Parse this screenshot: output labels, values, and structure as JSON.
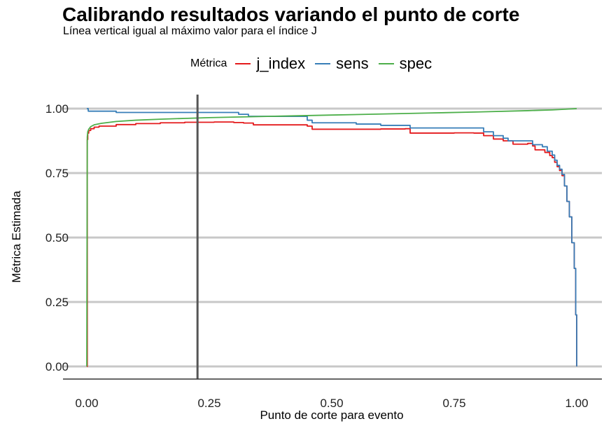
{
  "chart_data": {
    "type": "line",
    "title": "Calibrando resultados variando el punto de corte",
    "subtitle": "Línea vertical igual al máximo valor para el índice J",
    "xlabel": "Punto de corte para evento",
    "ylabel": "Métrica Estimada",
    "xlim": [
      0,
      1
    ],
    "ylim": [
      0,
      1
    ],
    "x_ticks": [
      "0.00",
      "0.25",
      "0.50",
      "0.75",
      "1.00"
    ],
    "y_ticks": [
      "0.00",
      "0.25",
      "0.50",
      "0.75",
      "1.00"
    ],
    "grid": "horizontal major lines",
    "legend_placement": "top",
    "legend_title": "Métrica",
    "vline_x": 0.226,
    "vline_color": "#555555",
    "series": [
      {
        "name": "j_index",
        "color": "#E41A1C",
        "step": true,
        "points": [
          [
            0.0,
            0.0
          ],
          [
            0.001,
            0.88
          ],
          [
            0.002,
            0.905
          ],
          [
            0.004,
            0.915
          ],
          [
            0.008,
            0.922
          ],
          [
            0.015,
            0.928
          ],
          [
            0.025,
            0.932
          ],
          [
            0.06,
            0.938
          ],
          [
            0.1,
            0.942
          ],
          [
            0.15,
            0.945
          ],
          [
            0.2,
            0.947
          ],
          [
            0.26,
            0.948
          ],
          [
            0.3,
            0.946
          ],
          [
            0.32,
            0.944
          ],
          [
            0.34,
            0.937
          ],
          [
            0.45,
            0.932
          ],
          [
            0.46,
            0.92
          ],
          [
            0.6,
            0.921
          ],
          [
            0.65,
            0.922
          ],
          [
            0.66,
            0.905
          ],
          [
            0.75,
            0.906
          ],
          [
            0.79,
            0.905
          ],
          [
            0.81,
            0.895
          ],
          [
            0.83,
            0.882
          ],
          [
            0.85,
            0.875
          ],
          [
            0.87,
            0.862
          ],
          [
            0.9,
            0.865
          ],
          [
            0.91,
            0.855
          ],
          [
            0.915,
            0.84
          ],
          [
            0.93,
            0.84
          ],
          [
            0.935,
            0.83
          ],
          [
            0.945,
            0.818
          ],
          [
            0.95,
            0.81
          ],
          [
            0.955,
            0.792
          ],
          [
            0.96,
            0.775
          ],
          [
            0.965,
            0.76
          ],
          [
            0.97,
            0.74
          ],
          [
            0.975,
            0.7
          ],
          [
            0.98,
            0.64
          ],
          [
            0.985,
            0.58
          ],
          [
            0.99,
            0.48
          ],
          [
            0.995,
            0.38
          ],
          [
            0.998,
            0.2
          ],
          [
            1.0,
            0.0
          ]
        ]
      },
      {
        "name": "sens",
        "color": "#377EB8",
        "step": true,
        "points": [
          [
            0.0,
            1.0
          ],
          [
            0.003,
            0.99
          ],
          [
            0.06,
            0.985
          ],
          [
            0.31,
            0.978
          ],
          [
            0.33,
            0.97
          ],
          [
            0.45,
            0.955
          ],
          [
            0.46,
            0.945
          ],
          [
            0.55,
            0.94
          ],
          [
            0.6,
            0.935
          ],
          [
            0.65,
            0.935
          ],
          [
            0.66,
            0.925
          ],
          [
            0.8,
            0.925
          ],
          [
            0.81,
            0.91
          ],
          [
            0.83,
            0.895
          ],
          [
            0.85,
            0.885
          ],
          [
            0.86,
            0.875
          ],
          [
            0.9,
            0.875
          ],
          [
            0.91,
            0.86
          ],
          [
            0.93,
            0.852
          ],
          [
            0.94,
            0.835
          ],
          [
            0.95,
            0.82
          ],
          [
            0.955,
            0.8
          ],
          [
            0.96,
            0.78
          ],
          [
            0.965,
            0.765
          ],
          [
            0.97,
            0.745
          ],
          [
            0.975,
            0.7
          ],
          [
            0.98,
            0.64
          ],
          [
            0.985,
            0.58
          ],
          [
            0.99,
            0.48
          ],
          [
            0.995,
            0.38
          ],
          [
            0.998,
            0.2
          ],
          [
            1.0,
            0.0
          ]
        ]
      },
      {
        "name": "spec",
        "color": "#4DAF4A",
        "step": false,
        "points": [
          [
            0.0,
            0.0
          ],
          [
            0.001,
            0.89
          ],
          [
            0.002,
            0.91
          ],
          [
            0.004,
            0.92
          ],
          [
            0.008,
            0.93
          ],
          [
            0.015,
            0.937
          ],
          [
            0.03,
            0.943
          ],
          [
            0.06,
            0.95
          ],
          [
            0.1,
            0.955
          ],
          [
            0.15,
            0.959
          ],
          [
            0.2,
            0.962
          ],
          [
            0.25,
            0.965
          ],
          [
            0.3,
            0.967
          ],
          [
            0.35,
            0.969
          ],
          [
            0.4,
            0.971
          ],
          [
            0.5,
            0.975
          ],
          [
            0.6,
            0.979
          ],
          [
            0.7,
            0.983
          ],
          [
            0.8,
            0.987
          ],
          [
            0.9,
            0.992
          ],
          [
            0.95,
            0.995
          ],
          [
            0.98,
            0.998
          ],
          [
            1.0,
            1.0
          ]
        ]
      }
    ]
  }
}
